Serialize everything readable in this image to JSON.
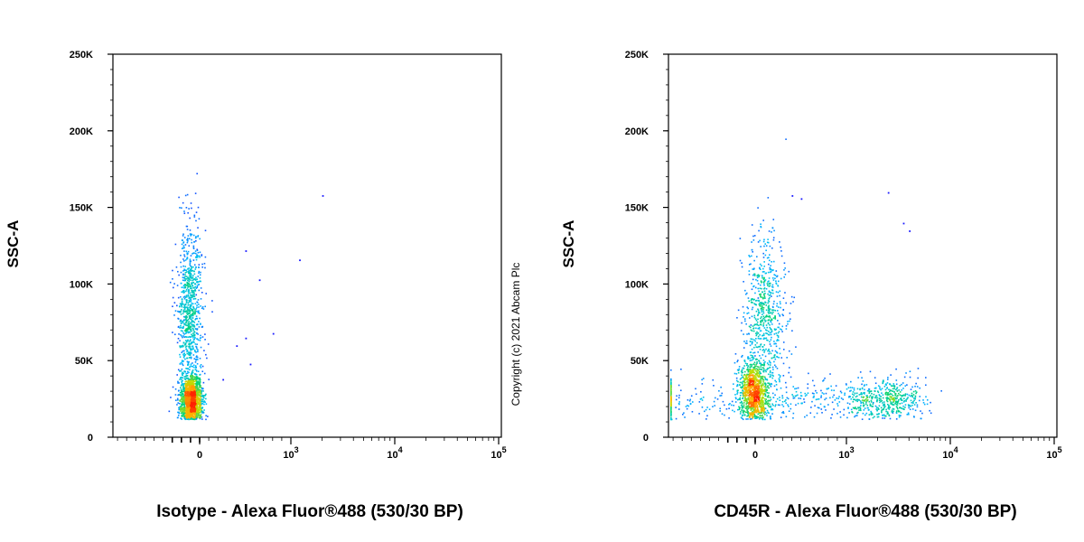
{
  "copyright": "Copyright (c) 2021 Abcam Plc",
  "chart_data": [
    {
      "type": "scatter",
      "name": "isotype-panel",
      "xlabel": "Isotype - Alexa Fluor®488 (530/30 BP)",
      "ylabel": "SSC-A",
      "x_scale": "biexponential",
      "ylim": [
        0,
        250000
      ],
      "y_ticks": [
        {
          "value": 0,
          "label": "0"
        },
        {
          "value": 50000,
          "label": "50K"
        },
        {
          "value": 100000,
          "label": "100K"
        },
        {
          "value": 150000,
          "label": "150K"
        },
        {
          "value": 200000,
          "label": "200K"
        },
        {
          "value": 250000,
          "label": "250K"
        }
      ],
      "x_ticks": [
        {
          "value": 0,
          "label": "0"
        },
        {
          "value": 1000,
          "label": "10",
          "exp": "3"
        },
        {
          "value": 10000,
          "label": "10",
          "exp": "4"
        },
        {
          "value": 100000,
          "label": "10",
          "exp": "5"
        }
      ],
      "populations": [
        {
          "center_x": -100,
          "center_y": 25000,
          "spread_x": 60,
          "spread_y": 9000,
          "count": 1400
        },
        {
          "center_x": -120,
          "center_y": 80000,
          "spread_x": 70,
          "spread_y": 28000,
          "count": 900
        }
      ],
      "outliers": [
        {
          "x": 2000,
          "y": 158000
        },
        {
          "x": 1200,
          "y": 116000
        },
        {
          "x": 500,
          "y": 122000
        },
        {
          "x": 650,
          "y": 103000
        },
        {
          "x": 800,
          "y": 68000
        },
        {
          "x": 500,
          "y": 65000
        },
        {
          "x": 400,
          "y": 60000
        },
        {
          "x": 550,
          "y": 48000
        },
        {
          "x": 250,
          "y": 38000
        }
      ]
    },
    {
      "type": "scatter",
      "name": "cd45r-panel",
      "xlabel": "CD45R - Alexa Fluor®488 (530/30 BP)",
      "ylabel": "SSC-A",
      "x_scale": "biexponential",
      "ylim": [
        0,
        250000
      ],
      "y_ticks": [
        {
          "value": 0,
          "label": "0"
        },
        {
          "value": 50000,
          "label": "50K"
        },
        {
          "value": 100000,
          "label": "100K"
        },
        {
          "value": 150000,
          "label": "150K"
        },
        {
          "value": 200000,
          "label": "200K"
        },
        {
          "value": 250000,
          "label": "250K"
        }
      ],
      "x_ticks": [
        {
          "value": 0,
          "label": "0"
        },
        {
          "value": 1000,
          "label": "10",
          "exp": "3"
        },
        {
          "value": 10000,
          "label": "10",
          "exp": "4"
        },
        {
          "value": 100000,
          "label": "10",
          "exp": "5"
        }
      ],
      "populations": [
        {
          "center_x": -30,
          "center_y": 30000,
          "spread_x": 80,
          "spread_y": 10000,
          "count": 900
        },
        {
          "center_x": 100,
          "center_y": 75000,
          "spread_x": 120,
          "spread_y": 28000,
          "count": 700
        },
        {
          "center_x": 1200,
          "center_y": 25000,
          "spread_x": 1800,
          "spread_y": 7000,
          "count": 900
        }
      ],
      "outliers": [
        {
          "x": 2500,
          "y": 160000
        },
        {
          "x": 400,
          "y": 158000
        },
        {
          "x": 500,
          "y": 156000
        },
        {
          "x": 4000,
          "y": 135000
        },
        {
          "x": 3500,
          "y": 140000
        }
      ]
    }
  ]
}
